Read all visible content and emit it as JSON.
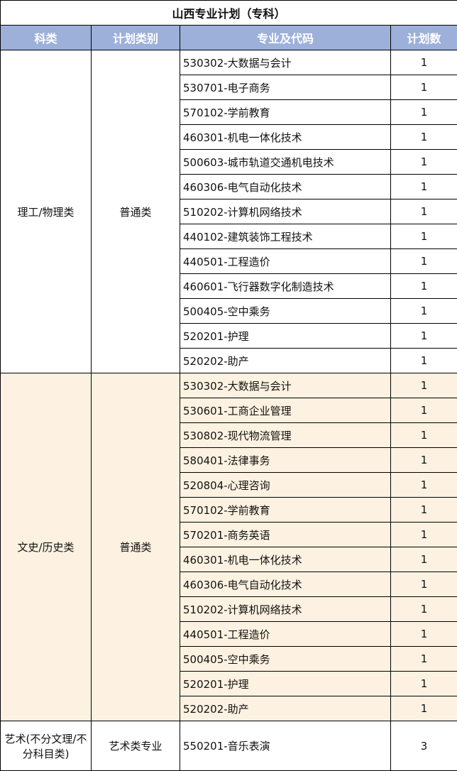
{
  "title": "山西专业计划（专科）",
  "columns": [
    "科类",
    "计划类别",
    "专业及代码",
    "计划数"
  ],
  "colors": {
    "header_bg": "#9DB0DA",
    "alt_section_bg": "#FDF2E1"
  },
  "sections": [
    {
      "category": "理工/物理类",
      "plan_type": "普通类",
      "alt": false,
      "rows": [
        {
          "major": "530302-大数据与会计",
          "count": "1"
        },
        {
          "major": "530701-电子商务",
          "count": "1"
        },
        {
          "major": "570102-学前教育",
          "count": "1"
        },
        {
          "major": "460301-机电一体化技术",
          "count": "1"
        },
        {
          "major": "500603-城市轨道交通机电技术",
          "count": "1"
        },
        {
          "major": "460306-电气自动化技术",
          "count": "1"
        },
        {
          "major": "510202-计算机网络技术",
          "count": "1"
        },
        {
          "major": "440102-建筑装饰工程技术",
          "count": "1"
        },
        {
          "major": "440501-工程造价",
          "count": "1"
        },
        {
          "major": "460601-飞行器数字化制造技术",
          "count": "1"
        },
        {
          "major": "500405-空中乘务",
          "count": "1"
        },
        {
          "major": "520201-护理",
          "count": "1"
        },
        {
          "major": "520202-助产",
          "count": "1"
        }
      ]
    },
    {
      "category": "文史/历史类",
      "plan_type": "普通类",
      "alt": true,
      "rows": [
        {
          "major": "530302-大数据与会计",
          "count": "1"
        },
        {
          "major": "530601-工商企业管理",
          "count": "1"
        },
        {
          "major": "530802-现代物流管理",
          "count": "1"
        },
        {
          "major": "580401-法律事务",
          "count": "1"
        },
        {
          "major": "520804-心理咨询",
          "count": "1"
        },
        {
          "major": "570102-学前教育",
          "count": "1"
        },
        {
          "major": "570201-商务英语",
          "count": "1"
        },
        {
          "major": "460301-机电一体化技术",
          "count": "1"
        },
        {
          "major": "460306-电气自动化技术",
          "count": "1"
        },
        {
          "major": "510202-计算机网络技术",
          "count": "1"
        },
        {
          "major": "440501-工程造价",
          "count": "1"
        },
        {
          "major": "500405-空中乘务",
          "count": "1"
        },
        {
          "major": "520201-护理",
          "count": "1"
        },
        {
          "major": "520202-助产",
          "count": "1"
        }
      ]
    },
    {
      "category": "艺术(不分文理/不分科目类)",
      "plan_type": "艺术类专业",
      "alt": false,
      "last": true,
      "rows": [
        {
          "major": "550201-音乐表演",
          "count": "3"
        }
      ]
    }
  ]
}
